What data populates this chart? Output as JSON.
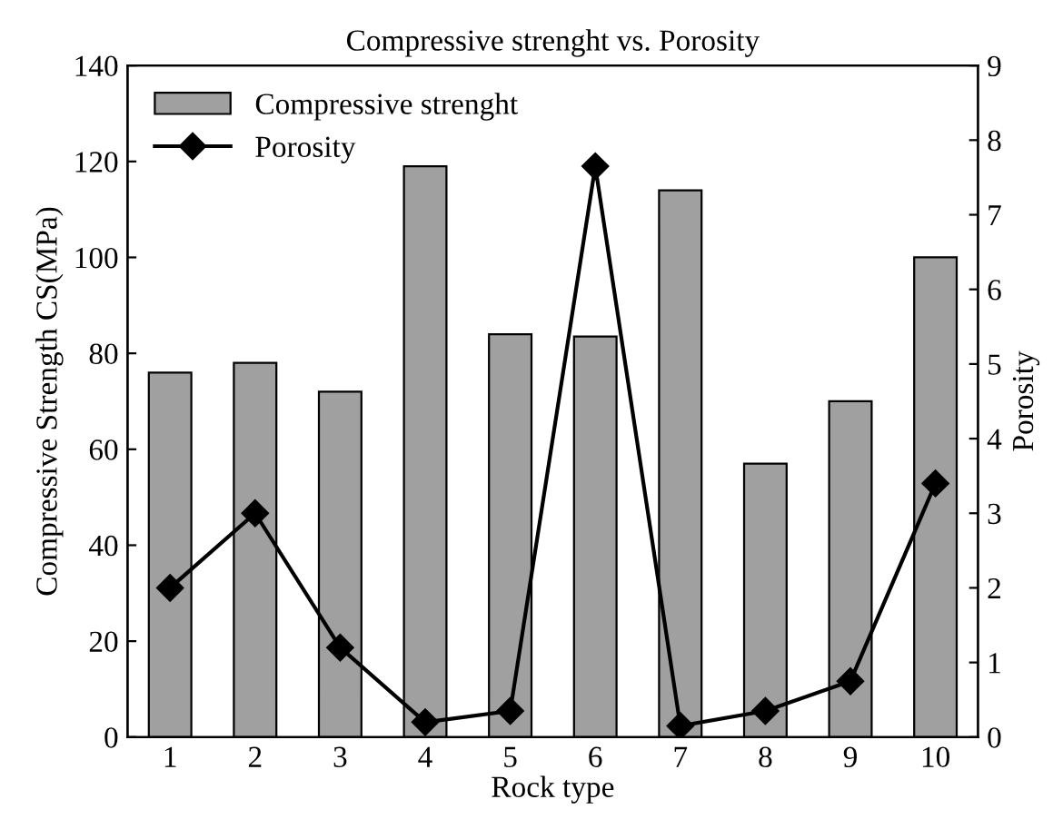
{
  "chart_data": {
    "type": "bar",
    "title": "Compressive strenght vs. Porosity",
    "xlabel": "Rock type",
    "ylabel": "Compressive Strength CS(MPa)",
    "y2label": "Porosity",
    "categories": [
      "1",
      "2",
      "3",
      "4",
      "5",
      "6",
      "7",
      "8",
      "9",
      "10"
    ],
    "series": [
      {
        "name": "Compressive strenght",
        "color": "#a0a0a0",
        "values": [
          76,
          78,
          72,
          119,
          84,
          83.5,
          114,
          57,
          70,
          100
        ]
      },
      {
        "name": "Porosity",
        "type": "line",
        "axis": "y2",
        "color": "#000000",
        "marker": "diamond",
        "values": [
          2.0,
          3.0,
          1.2,
          0.2,
          0.35,
          7.65,
          0.15,
          0.35,
          0.75,
          3.4
        ]
      }
    ],
    "ylim": [
      0,
      140
    ],
    "yticks": [
      0,
      20,
      40,
      60,
      80,
      100,
      120,
      140
    ],
    "y2lim": [
      0,
      9
    ],
    "y2ticks": [
      0,
      1,
      2,
      3,
      4,
      5,
      6,
      7,
      8,
      9
    ],
    "legend": "top left",
    "grid": false
  }
}
